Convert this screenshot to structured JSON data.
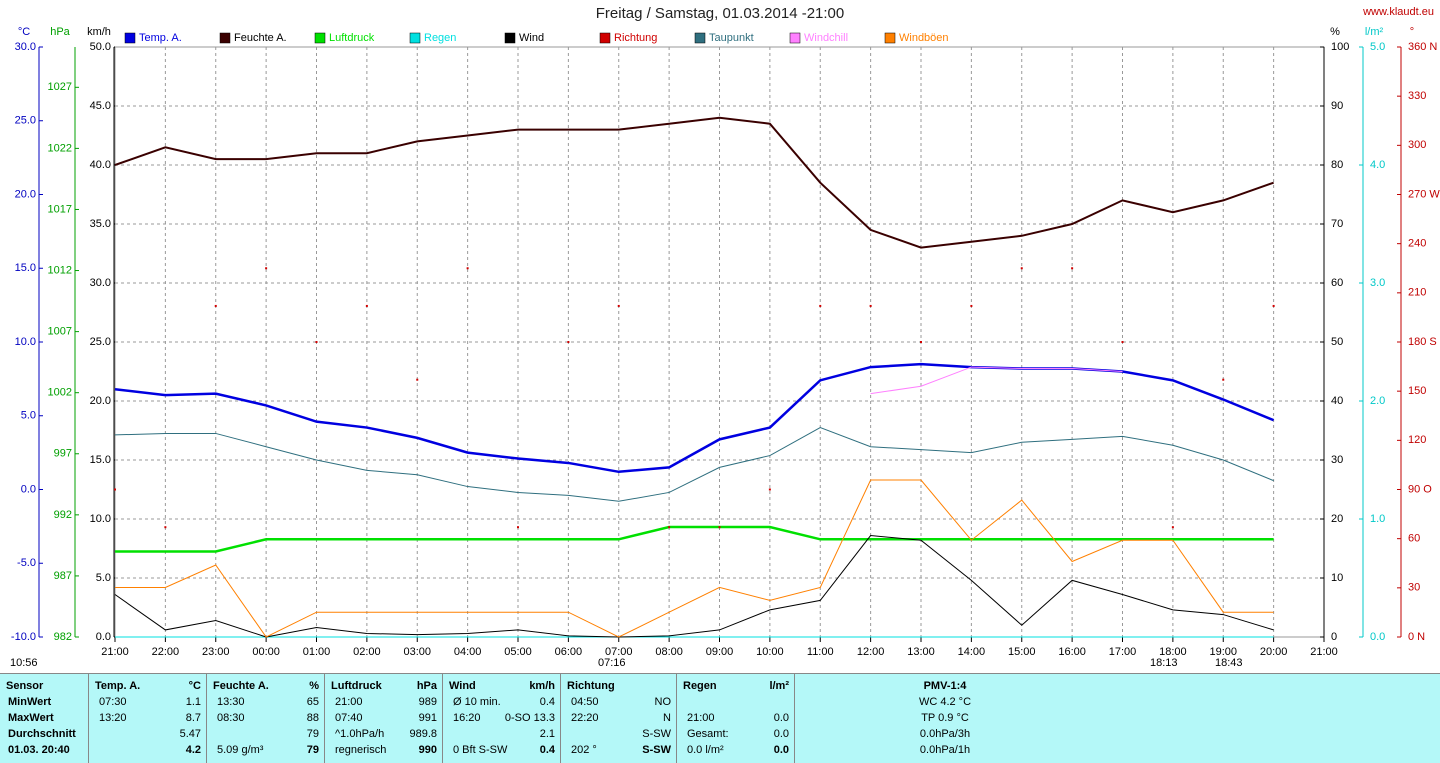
{
  "chart_data": {
    "type": "line",
    "title": "Freitag / Samstag, 01.03.2014  -21:00",
    "source": "www.klaudt.eu",
    "categories": [
      "21:00",
      "22:00",
      "23:00",
      "00:00",
      "01:00",
      "02:00",
      "03:00",
      "04:00",
      "05:00",
      "06:00",
      "07:00",
      "08:00",
      "09:00",
      "10:00",
      "11:00",
      "12:00",
      "13:00",
      "14:00",
      "15:00",
      "16:00",
      "17:00",
      "18:00",
      "19:00",
      "20:00",
      "21:00"
    ],
    "grid": true,
    "axes": [
      {
        "unit": "°C",
        "side": "left",
        "color": "#0000c0",
        "lim": [
          -10,
          30
        ],
        "ticks": [
          {
            "value": -10,
            "label": "-10.0"
          },
          {
            "value": -5,
            "label": "-5.0"
          },
          {
            "value": 0,
            "label": "0.0"
          },
          {
            "value": 5,
            "label": "5.0"
          },
          {
            "value": 10,
            "label": "10.0"
          },
          {
            "value": 15,
            "label": "15.0"
          },
          {
            "value": 20,
            "label": "20.0"
          },
          {
            "value": 25,
            "label": "25.0"
          },
          {
            "value": 30,
            "label": "30.0"
          }
        ]
      },
      {
        "unit": "hPa",
        "side": "left",
        "color": "#00a000",
        "lim": [
          982,
          1030.3
        ],
        "ticks": [
          982,
          987,
          992,
          997,
          1002,
          1007,
          1012,
          1017,
          1022,
          1027
        ]
      },
      {
        "unit": "km/h",
        "side": "left",
        "color": "#000000",
        "lim": [
          0,
          50
        ],
        "grid": true,
        "ticks": [
          {
            "value": 0,
            "label": "0.0"
          },
          {
            "value": 5,
            "label": "5.0"
          },
          {
            "value": 10,
            "label": "10.0"
          },
          {
            "value": 15,
            "label": "15.0"
          },
          {
            "value": 20,
            "label": "20.0"
          },
          {
            "value": 25,
            "label": "25.0"
          },
          {
            "value": 30,
            "label": "30.0"
          },
          {
            "value": 35,
            "label": "35.0"
          },
          {
            "value": 40,
            "label": "40.0"
          },
          {
            "value": 45,
            "label": "45.0"
          },
          {
            "value": 50,
            "label": "50.0"
          }
        ]
      },
      {
        "unit": "%",
        "side": "right",
        "color": "#000000",
        "lim": [
          0,
          100
        ],
        "ticks": [
          0,
          10,
          20,
          30,
          40,
          50,
          60,
          70,
          80,
          90,
          100
        ]
      },
      {
        "unit": "l/m²",
        "side": "right",
        "color": "#00c8c8",
        "lim": [
          0,
          5
        ],
        "ticks": [
          {
            "value": 0,
            "label": "0.0"
          },
          {
            "value": 1,
            "label": "1.0"
          },
          {
            "value": 2,
            "label": "2.0"
          },
          {
            "value": 3,
            "label": "3.0"
          },
          {
            "value": 4,
            "label": "4.0"
          },
          {
            "value": 5,
            "label": "5.0"
          }
        ]
      },
      {
        "unit": "°",
        "side": "right",
        "color": "#c00000",
        "lim": [
          0,
          360
        ],
        "ticks": [
          {
            "value": 0,
            "label": "0 N"
          },
          30,
          60,
          {
            "value": 90,
            "label": "90 O"
          },
          120,
          150,
          {
            "value": 180,
            "label": "180 S"
          },
          210,
          240,
          {
            "value": 270,
            "label": "270 W"
          },
          300,
          330,
          {
            "value": 360,
            "label": "360 N"
          }
        ]
      }
    ],
    "series": [
      {
        "name": "Temp. A.",
        "color": "#0000e0",
        "axis": "°C",
        "width": 2.5,
        "values": [
          6.8,
          6.4,
          6.5,
          5.7,
          4.6,
          4.2,
          3.5,
          2.5,
          2.1,
          1.8,
          1.2,
          1.5,
          3.4,
          4.2,
          7.4,
          8.3,
          8.5,
          8.3,
          8.2,
          8.2,
          8.0,
          7.4,
          6.1,
          4.7,
          null
        ]
      },
      {
        "name": "Feuchte A.",
        "color": "#3a0000",
        "axis": "%",
        "width": 2,
        "values": [
          80,
          83,
          81,
          81,
          82,
          82,
          84,
          85,
          86,
          86,
          86,
          87,
          88,
          87,
          77,
          69,
          66,
          67,
          68,
          70,
          74,
          72,
          74,
          77,
          null
        ]
      },
      {
        "name": "Luftdruck",
        "color": "#00e000",
        "axis": "hPa",
        "width": 2.5,
        "values": [
          989,
          989,
          989,
          990,
          990,
          990,
          990,
          990,
          990,
          990,
          990,
          991,
          991,
          991,
          990,
          990,
          990,
          990,
          990,
          990,
          990,
          990,
          990,
          990,
          null
        ]
      },
      {
        "name": "Regen",
        "color": "#00e0e0",
        "axis": "l/m²",
        "width": 1,
        "values": [
          0,
          0,
          0,
          0,
          0,
          0,
          0,
          0,
          0,
          0,
          0,
          0,
          0,
          0,
          0,
          0,
          0,
          0,
          0,
          0,
          0,
          0,
          0,
          0,
          null
        ]
      },
      {
        "name": "Wind",
        "color": "#000000",
        "axis": "km/h",
        "width": 1,
        "values": [
          3.6,
          0.6,
          1.4,
          0,
          0.8,
          0.3,
          0.2,
          0.3,
          0.6,
          0.1,
          0,
          0.1,
          0.6,
          2.3,
          3.1,
          8.6,
          8.2,
          4.8,
          1.0,
          4.8,
          3.6,
          2.3,
          1.9,
          0.6,
          null
        ]
      },
      {
        "name": "Richtung",
        "color": "#d00000",
        "axis": "°",
        "style": "dots",
        "values": [
          90,
          67,
          202,
          225,
          180,
          202,
          157,
          225,
          67,
          180,
          202,
          67,
          67,
          90,
          202,
          202,
          180,
          202,
          225,
          225,
          180,
          67,
          157,
          202,
          null
        ]
      },
      {
        "name": "Taupunkt",
        "color": "#2f6f7f",
        "axis": "°C",
        "width": 1,
        "values": [
          3.7,
          3.8,
          3.8,
          2.9,
          2.0,
          1.3,
          1.0,
          0.2,
          -0.2,
          -0.4,
          -0.8,
          -0.2,
          1.5,
          2.3,
          4.2,
          2.9,
          2.7,
          2.5,
          3.2,
          3.4,
          3.6,
          3.0,
          2.0,
          0.6,
          null
        ]
      },
      {
        "name": "Windchill",
        "color": "#ff80ff",
        "axis": "°C",
        "width": 1,
        "values": [
          null,
          null,
          null,
          null,
          null,
          null,
          null,
          null,
          null,
          null,
          null,
          null,
          null,
          null,
          null,
          6.5,
          7.0,
          8.3,
          8.2,
          8.2,
          8.0,
          null,
          null,
          null,
          null
        ]
      },
      {
        "name": "Windböen",
        "color": "#ff8000",
        "axis": "km/h",
        "width": 1,
        "values": [
          4.2,
          4.2,
          6.1,
          0,
          2.1,
          2.1,
          2.1,
          2.1,
          2.1,
          2.1,
          0,
          2.1,
          4.2,
          3.1,
          4.2,
          13.3,
          13.3,
          8.2,
          11.6,
          6.4,
          8.2,
          8.2,
          2.1,
          2.1,
          null
        ]
      }
    ],
    "annotations": [
      "10:56",
      "07:16",
      "18:13",
      "18:43"
    ]
  },
  "table": {
    "columns": [
      {
        "header": "Sensor",
        "rows": [
          {
            "l": "MinWert"
          },
          {
            "l": "MaxWert"
          },
          {
            "l": "Durchschnitt"
          },
          {
            "l": "01.03. 20:40"
          }
        ]
      },
      {
        "header": "Temp. A.",
        "unit": "°C",
        "rows": [
          {
            "l": "07:30",
            "r": "1.1"
          },
          {
            "l": "13:20",
            "r": "8.7"
          },
          {
            "r": "5.47"
          },
          {
            "r": "4.2"
          }
        ]
      },
      {
        "header": "Feuchte A.",
        "unit": "%",
        "rows": [
          {
            "l": "13:30",
            "r": "65"
          },
          {
            "l": "08:30",
            "r": "88"
          },
          {
            "r": "79"
          },
          {
            "l": "5.09 g/m³",
            "r": "79"
          }
        ]
      },
      {
        "header": "Luftdruck",
        "unit": "hPa",
        "rows": [
          {
            "l": "21:00",
            "r": "989"
          },
          {
            "l": "07:40",
            "r": "991"
          },
          {
            "l": "^1.0hPa/h",
            "r": "989.8"
          },
          {
            "l": "regnerisch",
            "r": "990"
          }
        ]
      },
      {
        "header": "Wind",
        "unit": "km/h",
        "rows": [
          {
            "l": "Ø 10 min.",
            "r": "0.4"
          },
          {
            "l": "16:20",
            "r": "0-SO 13.3"
          },
          {
            "r": "2.1"
          },
          {
            "l": "0 Bft S-SW",
            "r": "0.4"
          }
        ]
      },
      {
        "header": "Richtung",
        "rows": [
          {
            "l": "04:50",
            "r": "NO"
          },
          {
            "l": "22:20",
            "r": "N"
          },
          {
            "r": "S-SW"
          },
          {
            "l": "202 °",
            "r": "S-SW"
          }
        ]
      },
      {
        "header": "Regen",
        "unit": "l/m²",
        "rows": [
          null,
          {
            "l": "21:00",
            "r": "0.0"
          },
          {
            "l": "Gesamt:",
            "r": "0.0"
          },
          {
            "l": "0.0 l/m²",
            "r": "0.0"
          }
        ]
      },
      {
        "header": "PMV-1:4",
        "center": true,
        "rows": [
          {
            "l": "WC 4.2 °C"
          },
          {
            "l": "TP 0.9 °C"
          },
          {
            "l": "0.0hPa/3h"
          },
          {
            "l": "0.0hPa/1h"
          }
        ]
      }
    ]
  }
}
